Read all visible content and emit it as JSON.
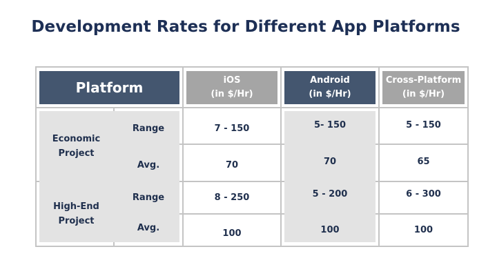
{
  "title": "Development Rates for Different App Platforms",
  "table": {
    "header": {
      "platform": "Platform",
      "ios": [
        "iOS",
        "(in $/Hr)"
      ],
      "android": [
        "Android",
        "(in $/Hr)"
      ],
      "cross": [
        "Cross-Platform",
        "(in $/Hr)"
      ]
    },
    "groups": [
      {
        "label": [
          "Economic",
          "Project"
        ],
        "rows": [
          {
            "label": "Range",
            "ios": "7 - 150",
            "android": "5- 150",
            "cross": "5 - 150"
          },
          {
            "label": "Avg.",
            "ios": "70",
            "android": "70",
            "cross": "65"
          }
        ]
      },
      {
        "label": [
          "High-End",
          "Project"
        ],
        "rows": [
          {
            "label": "Range",
            "ios": "8 - 250",
            "android": "5 - 200",
            "cross": "6 - 300"
          },
          {
            "label": "Avg.",
            "ios": "100",
            "android": "100",
            "cross": "100"
          }
        ]
      }
    ]
  },
  "colors": {
    "header_dark": "#44566f",
    "header_gray": "#a5a5a5",
    "shade": "#e3e3e3",
    "text": "#1f2f4d",
    "border": "#c4c4c4"
  }
}
